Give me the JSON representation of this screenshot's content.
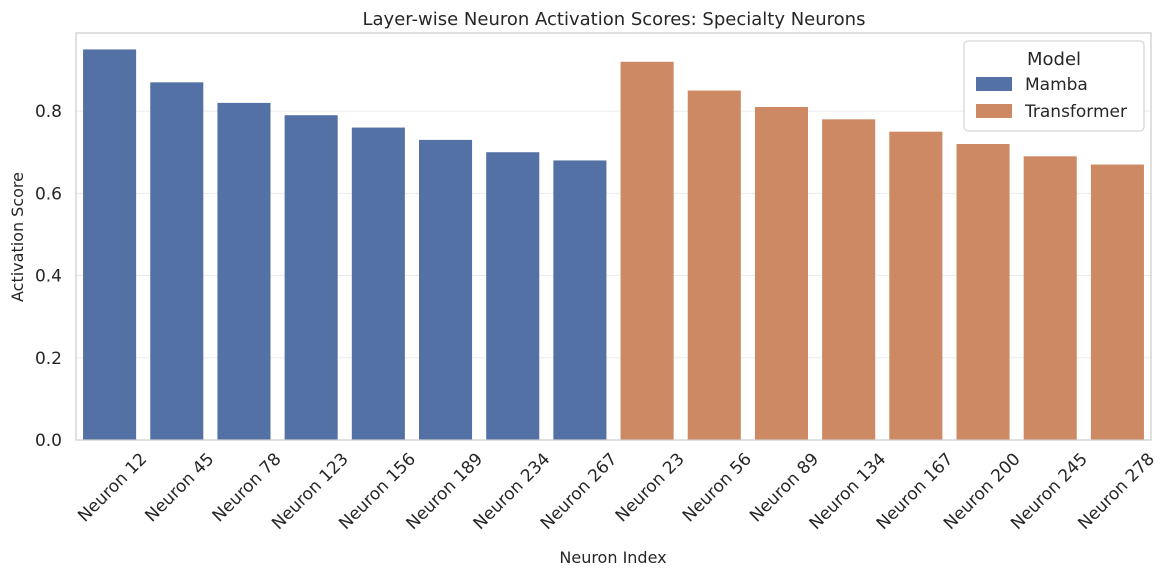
{
  "chart_data": {
    "type": "bar",
    "title": "Layer-wise Neuron Activation Scores: Specialty Neurons",
    "xlabel": "Neuron Index",
    "ylabel": "Activation Score",
    "ylim": [
      0,
      0.99
    ],
    "yticks": [
      "0.0",
      "0.2",
      "0.4",
      "0.6",
      "0.8"
    ],
    "grid": true,
    "legend": {
      "title": "Model",
      "placement": "top-right"
    },
    "categories": [
      "Neuron 12",
      "Neuron 45",
      "Neuron 78",
      "Neuron 123",
      "Neuron 156",
      "Neuron 189",
      "Neuron 234",
      "Neuron 267",
      "Neuron 23",
      "Neuron 56",
      "Neuron 89",
      "Neuron 134",
      "Neuron 167",
      "Neuron 200",
      "Neuron 245",
      "Neuron 278"
    ],
    "series": [
      {
        "name": "Mamba",
        "color": "#5471a5",
        "values": [
          0.95,
          0.87,
          0.82,
          0.79,
          0.76,
          0.73,
          0.7,
          0.68,
          null,
          null,
          null,
          null,
          null,
          null,
          null,
          null
        ]
      },
      {
        "name": "Transformer",
        "color": "#cc8963",
        "values": [
          null,
          null,
          null,
          null,
          null,
          null,
          null,
          null,
          0.92,
          0.85,
          0.81,
          0.78,
          0.75,
          0.72,
          0.69,
          0.67
        ]
      }
    ]
  }
}
